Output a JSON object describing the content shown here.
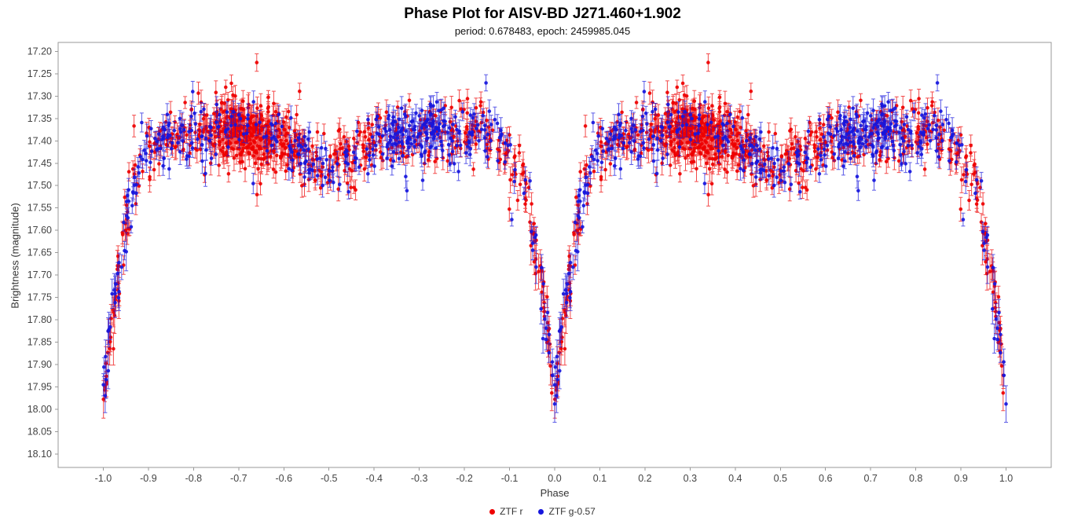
{
  "chart_data": {
    "type": "scatter",
    "title": "Phase Plot for AISV-BD J271.460+1.902",
    "subtitle": "period: 0.678483, epoch: 2459985.045",
    "xlabel": "Phase",
    "ylabel": "Brightness (magnitude)",
    "xlim": [
      -1.1,
      1.1
    ],
    "ylim": [
      17.18,
      18.13
    ],
    "y_axis_inverted_magnitude": true,
    "grid": false,
    "frame_color": "#9a9a9a",
    "tick_label_color": "#444444",
    "x_ticks": [
      "-1.0",
      "-0.9",
      "-0.8",
      "-0.7",
      "-0.6",
      "-0.5",
      "-0.4",
      "-0.3",
      "-0.2",
      "-0.1",
      "0.0",
      "0.1",
      "0.2",
      "0.3",
      "0.4",
      "0.5",
      "0.6",
      "0.7",
      "0.8",
      "0.9",
      "1.0"
    ],
    "y_ticks": [
      "17.20",
      "17.25",
      "17.30",
      "17.35",
      "17.40",
      "17.45",
      "17.50",
      "17.55",
      "17.60",
      "17.65",
      "17.70",
      "17.75",
      "17.80",
      "17.85",
      "17.90",
      "17.95",
      "18.00",
      "18.05",
      "18.10"
    ],
    "legend_position": "bottom-center",
    "series": [
      {
        "name": "ZTF r",
        "color": "#ee0000",
        "n_points": 820,
        "noise_sigma": 0.034,
        "phase_cluster": {
          "center": 0.32,
          "sigma": 0.05,
          "frac": 0.34
        }
      },
      {
        "name": "ZTF g-0.57",
        "color": "#1616dd",
        "n_points": 430,
        "noise_sigma": 0.031,
        "phase_cluster": {
          "center": 0.7,
          "sigma": 0.06,
          "frac": 0.24
        }
      }
    ],
    "duplication": "each observation plotted at phase-1 and phase",
    "mean_curve_anchors": [
      [
        0.0,
        17.955
      ],
      [
        0.008,
        17.9
      ],
      [
        0.016,
        17.835
      ],
      [
        0.025,
        17.76
      ],
      [
        0.035,
        17.685
      ],
      [
        0.045,
        17.615
      ],
      [
        0.055,
        17.555
      ],
      [
        0.065,
        17.51
      ],
      [
        0.08,
        17.465
      ],
      [
        0.1,
        17.43
      ],
      [
        0.13,
        17.405
      ],
      [
        0.17,
        17.388
      ],
      [
        0.22,
        17.378
      ],
      [
        0.27,
        17.374
      ],
      [
        0.32,
        17.378
      ],
      [
        0.37,
        17.39
      ],
      [
        0.42,
        17.41
      ],
      [
        0.46,
        17.44
      ],
      [
        0.5,
        17.468
      ],
      [
        0.54,
        17.44
      ],
      [
        0.58,
        17.41
      ],
      [
        0.63,
        17.39
      ],
      [
        0.68,
        17.378
      ],
      [
        0.73,
        17.374
      ],
      [
        0.78,
        17.378
      ],
      [
        0.83,
        17.39
      ],
      [
        0.87,
        17.406
      ],
      [
        0.9,
        17.43
      ],
      [
        0.92,
        17.465
      ],
      [
        0.935,
        17.51
      ],
      [
        0.945,
        17.555
      ],
      [
        0.955,
        17.615
      ],
      [
        0.965,
        17.685
      ],
      [
        0.975,
        17.76
      ],
      [
        0.984,
        17.835
      ],
      [
        0.992,
        17.9
      ],
      [
        1.0,
        17.955
      ]
    ],
    "magnitude_extremes": {
      "brightest_points": 17.23,
      "faintest_points": 18.07,
      "plateau_mean": 17.38,
      "secondary_dip_mean": 17.47,
      "primary_eclipse_mean": 17.95
    },
    "error_bar": {
      "min": 0.013,
      "spread": 0.016,
      "faint_boost": 1.5
    },
    "outlier_frac": 0.012,
    "seed": 20230217
  }
}
